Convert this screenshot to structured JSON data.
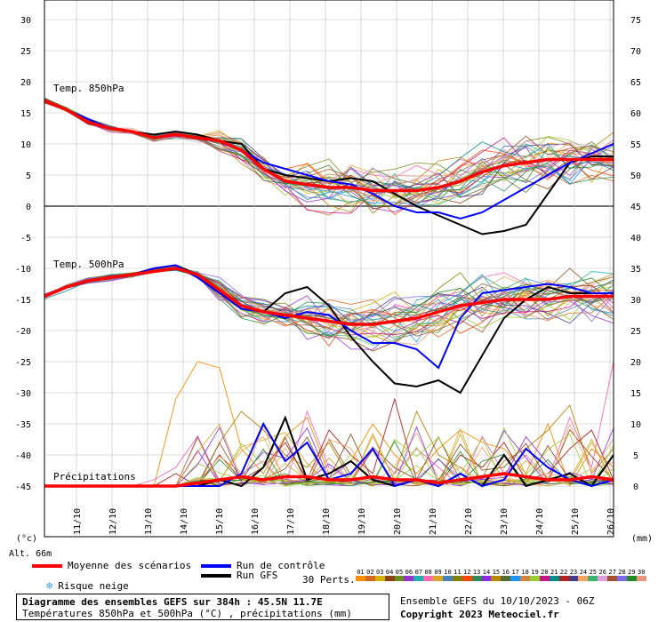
{
  "chart_data": {
    "type": "line",
    "x_labels": [
      "11/10",
      "12/10",
      "13/10",
      "14/10",
      "15/10",
      "16/10",
      "17/10",
      "18/10",
      "19/10",
      "20/10",
      "21/10",
      "22/10",
      "23/10",
      "24/10",
      "25/10",
      "26/10"
    ],
    "left_ticks": [
      30,
      25,
      20,
      15,
      10,
      5,
      0,
      -5,
      -10,
      -15,
      -20,
      -25,
      -30,
      -35,
      -40,
      -45
    ],
    "right_ticks": [
      75,
      70,
      65,
      60,
      55,
      50,
      45,
      40,
      35,
      30,
      25,
      20,
      15,
      10,
      5,
      0
    ],
    "left_unit": "(°c)",
    "right_unit": "(mm)",
    "alt_label": "Alt. 66m",
    "panels": {
      "t850": {
        "label": "Temp. 850hPa",
        "mean": [
          17,
          15.5,
          13.5,
          12.5,
          12,
          11,
          11.5,
          11,
          10.5,
          9,
          6,
          4,
          3.5,
          3,
          3,
          2.5,
          2.5,
          2.5,
          3,
          4,
          5.5,
          6.5,
          7,
          7.5,
          7.5,
          7.5,
          7.5
        ],
        "gfs": [
          17,
          15.5,
          14,
          12.5,
          12,
          11.5,
          12,
          11.5,
          10.5,
          10,
          6,
          5,
          4.5,
          4,
          4.5,
          4,
          2,
          0,
          -1.5,
          -3,
          -4.5,
          -4,
          -3,
          2,
          7,
          8,
          8
        ],
        "control": [
          17,
          15.5,
          14,
          12.5,
          12,
          11,
          11.5,
          11,
          10.5,
          9,
          7,
          6,
          5,
          4,
          3.5,
          2,
          0,
          -1,
          -1,
          -2,
          -1,
          1,
          3,
          5,
          7,
          8.5,
          10
        ]
      },
      "t500": {
        "label": "Temp. 500hPa",
        "mean": [
          -14.5,
          -13,
          -12,
          -11.5,
          -11,
          -10.5,
          -10,
          -11,
          -13.5,
          -16,
          -17,
          -17.5,
          -18,
          -18.5,
          -19,
          -19,
          -18.5,
          -18,
          -17,
          -16,
          -15.5,
          -15,
          -15,
          -15,
          -14.5,
          -14.5,
          -14.5
        ],
        "gfs": [
          -14.5,
          -13,
          -12,
          -11.5,
          -11,
          -10,
          -9.5,
          -11,
          -14,
          -16,
          -17,
          -14,
          -13,
          -16,
          -21,
          -25,
          -28.5,
          -29,
          -28,
          -30,
          -24,
          -18,
          -15,
          -13,
          -14,
          -14,
          -14
        ],
        "control": [
          -14.5,
          -13,
          -12,
          -11.5,
          -11,
          -10,
          -9.5,
          -11.5,
          -14,
          -16.5,
          -17,
          -18,
          -17,
          -17.5,
          -20,
          -22,
          -22,
          -23,
          -26,
          -18,
          -14,
          -13.5,
          -13,
          -12.5,
          -13,
          -14,
          -14
        ]
      },
      "precip": {
        "label": "Précipitations",
        "mean": [
          0,
          0,
          0,
          0,
          0,
          0,
          0,
          0.5,
          1,
          1.5,
          1,
          1.5,
          1.5,
          1,
          1,
          1.5,
          1,
          1,
          0.5,
          1,
          1.5,
          2,
          1.5,
          1,
          1,
          1.5,
          1
        ],
        "gfs": [
          0,
          0,
          0,
          0,
          0,
          0,
          0,
          0,
          1,
          0,
          3,
          11,
          1,
          2,
          4,
          1,
          0,
          1,
          0,
          2,
          0,
          5,
          0,
          1,
          2,
          0,
          5
        ],
        "control": [
          0,
          0,
          0,
          0,
          0,
          0,
          0,
          0,
          0,
          2,
          10,
          4,
          7,
          1,
          2,
          6,
          0,
          1,
          0,
          2,
          0,
          1,
          6,
          3,
          1,
          0,
          1
        ],
        "spike_perts": [
          [
            0,
            0,
            0,
            0,
            0,
            0,
            14,
            20,
            19,
            6,
            2,
            8,
            11,
            2,
            4,
            10,
            5,
            2,
            6,
            9,
            7,
            6,
            2,
            10,
            0,
            6,
            3
          ],
          [
            0,
            0,
            0,
            0,
            0,
            1,
            3,
            8,
            0,
            2,
            4,
            0,
            12,
            3,
            1,
            6,
            2,
            6,
            3,
            0,
            8,
            2,
            5,
            1,
            11,
            3,
            20
          ],
          [
            0,
            0,
            0,
            0,
            0,
            0,
            0,
            0,
            7,
            12,
            9,
            5,
            3,
            7,
            1,
            0,
            2,
            12,
            5,
            3,
            0,
            4,
            6,
            9,
            13,
            2,
            6
          ],
          [
            0,
            0,
            0,
            0,
            0,
            0,
            2,
            0,
            5,
            1,
            3,
            7,
            1,
            9,
            5,
            2,
            14,
            1,
            0,
            5,
            3,
            7,
            1,
            2,
            6,
            9,
            1
          ]
        ]
      }
    },
    "legend": {
      "mean": "Moyenne des scénarios",
      "control": "Run de contrôle",
      "gfs": "Run GFS",
      "snow": "Risque neige",
      "perts": "30 Perts."
    },
    "colors": {
      "mean": "#ff0000",
      "control": "#0000ff",
      "gfs": "#000000",
      "snow": "#3aa0e0",
      "grid": "#bfbfbf",
      "zero": "#6e6e6e"
    },
    "perturbation_colors": [
      "#ff8c00",
      "#d2691e",
      "#d3b400",
      "#8b4513",
      "#6b8e23",
      "#9932cc",
      "#20b2aa",
      "#ff69b4",
      "#daa520",
      "#4682b4",
      "#808000",
      "#ff4500",
      "#2e8b57",
      "#8a2be2",
      "#b8860b",
      "#556b2f",
      "#1e90ff",
      "#cd853f",
      "#9acd32",
      "#c71585",
      "#008b8b",
      "#b22222",
      "#483d8b",
      "#f4a460",
      "#3cb371",
      "#dda0dd",
      "#a0522d",
      "#7b68ee",
      "#228b22",
      "#e9967a"
    ]
  },
  "footer": {
    "title": "Diagramme des ensembles GEFS sur 384h : 45.5N 11.7E",
    "subtitle": "Températures 850hPa et 500hPa (°C) , précipitations (mm)",
    "run_info": "Ensemble GEFS du 10/10/2023 - 06Z",
    "copyright": "Copyright 2023 Meteociel.fr"
  }
}
